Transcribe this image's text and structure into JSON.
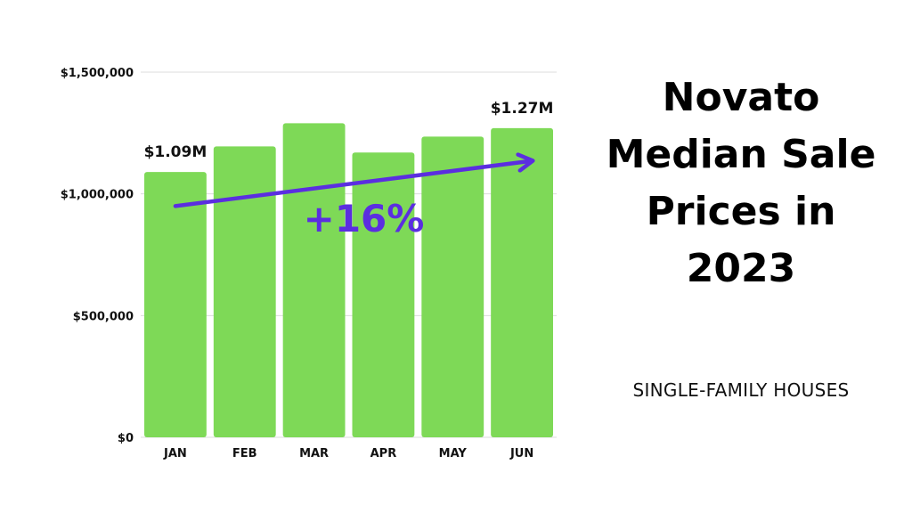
{
  "title_lines": [
    "Novato",
    "Median Sale",
    "Prices in",
    "2023"
  ],
  "subtitle": "SINGLE-FAMILY HOUSES",
  "chart_data": {
    "type": "bar",
    "categories": [
      "JAN",
      "FEB",
      "MAR",
      "APR",
      "MAY",
      "JUN"
    ],
    "values": [
      1090000,
      1195000,
      1290000,
      1170000,
      1235000,
      1270000
    ],
    "ylim": [
      0,
      1500000
    ],
    "yticks": [
      0,
      500000,
      1000000,
      1500000
    ],
    "ytick_labels": [
      "$0",
      "$500,000",
      "$1,000,000",
      "$1,500,000"
    ],
    "grid": true,
    "bar_color": "#7ed957",
    "data_labels": [
      {
        "category": "JAN",
        "text": "$1.09M"
      },
      {
        "category": "JUN",
        "text": "$1.27M"
      }
    ],
    "annotation": {
      "text": "+16%",
      "color": "#5b2ee0",
      "from_category": "JAN",
      "to_category": "JUN"
    }
  }
}
